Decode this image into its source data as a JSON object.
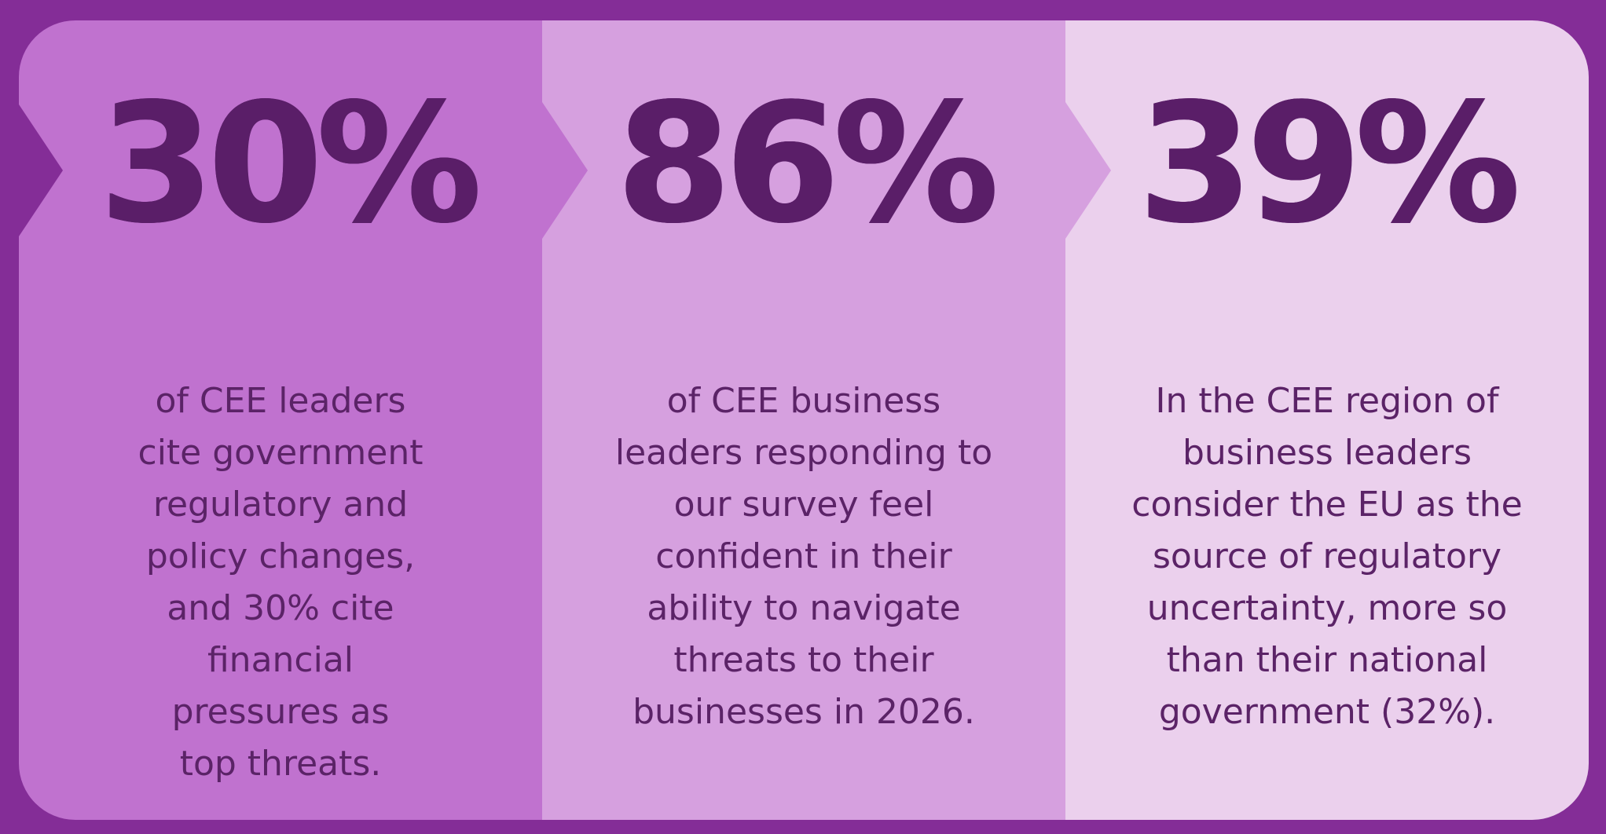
{
  "colors": {
    "background": "#842d97",
    "panel_1": "#c072cf",
    "panel_2": "#d6a0df",
    "panel_3": "#ebd0ed",
    "stat_text": "#5a1e68",
    "body_text": "#5b2367"
  },
  "panels": [
    {
      "stat": "30%",
      "description": "of CEE leaders\ncite government\nregulatory and\npolicy changes,\nand 30% cite\nfinancial\npressures as\ntop threats."
    },
    {
      "stat": "86%",
      "description": "of CEE business\nleaders responding to\nour survey feel\nconfident in their\nability to navigate\nthreats to their\nbusinesses in 2026."
    },
    {
      "stat": "39%",
      "description": "In the CEE region of\nbusiness leaders\nconsider the EU as the\nsource of regulatory\nuncertainty, more so\nthan their national\ngovernment (32%)."
    }
  ]
}
